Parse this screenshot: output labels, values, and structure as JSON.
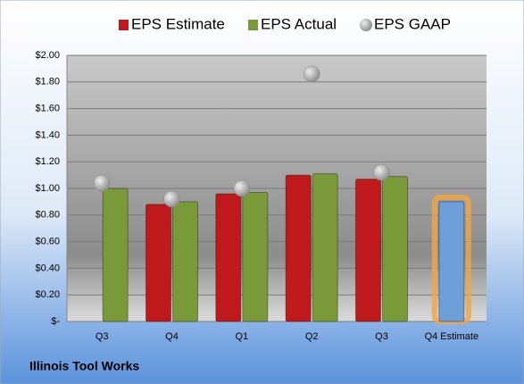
{
  "chart_data": {
    "type": "bar",
    "caption": "Illinois Tool Works",
    "categories": [
      "Q3",
      "Q4",
      "Q1",
      "Q2",
      "Q3",
      "Q4 Estimate"
    ],
    "series": [
      {
        "name": "EPS Estimate",
        "color": "#c0191c",
        "values": [
          null,
          0.88,
          0.96,
          1.1,
          1.07,
          null
        ]
      },
      {
        "name": "EPS Actual",
        "color": "#7a9a3a",
        "values": [
          1.0,
          0.9,
          0.97,
          1.11,
          1.09,
          null
        ]
      },
      {
        "name": "EPS GAAP",
        "color": "#a6a6a6",
        "type": "scatter",
        "values": [
          1.04,
          0.92,
          1.0,
          1.86,
          1.12,
          null
        ]
      },
      {
        "color": "#6e9fd8",
        "highlight": "#f4a640",
        "values": [
          null,
          null,
          null,
          null,
          null,
          0.9
        ]
      }
    ],
    "ylim": [
      0,
      2
    ],
    "yticks": [
      {
        "value": 0,
        "label": "$-"
      },
      {
        "value": 0.2,
        "label": "$0.20"
      },
      {
        "value": 0.4,
        "label": "$0.40"
      },
      {
        "value": 0.6,
        "label": "$0.60"
      },
      {
        "value": 0.8,
        "label": "$0.80"
      },
      {
        "value": 1.0,
        "label": "$1.00"
      },
      {
        "value": 1.2,
        "label": "$1.20"
      },
      {
        "value": 1.4,
        "label": "$1.40"
      },
      {
        "value": 1.6,
        "label": "$1.60"
      },
      {
        "value": 1.8,
        "label": "$1.80"
      },
      {
        "value": 2.0,
        "label": "$2.00"
      }
    ],
    "grid": true
  }
}
